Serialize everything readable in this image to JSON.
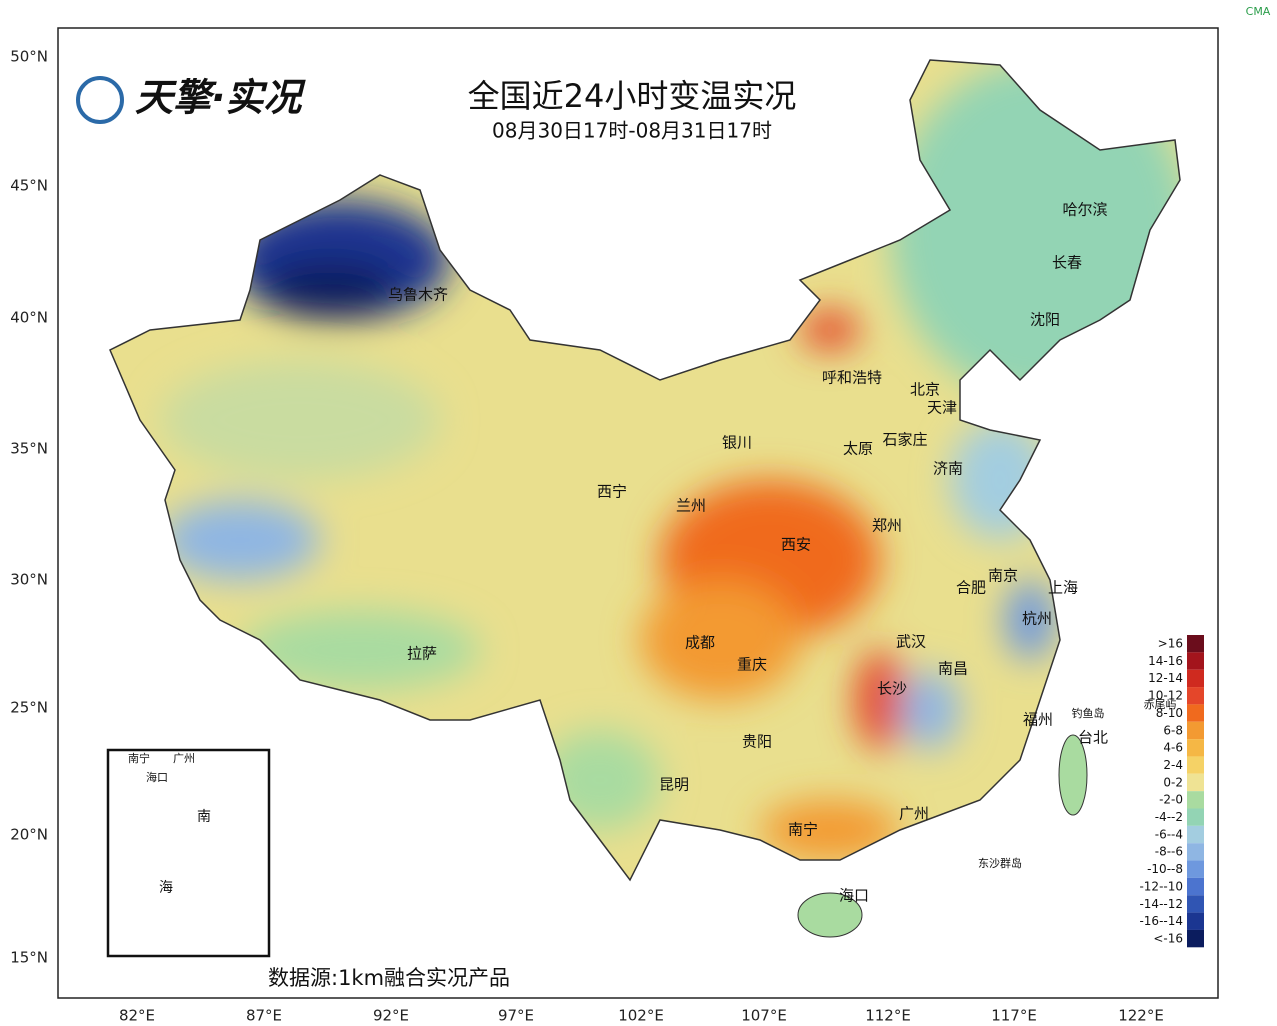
{
  "header": {
    "logo": "天擎·实况",
    "title": "全国近24小时变温实况",
    "subtitle": "08月30日17时-08月31日17时",
    "source": "数据源:1km融合实况产品",
    "watermark": "CMA"
  },
  "lat_labels": [
    "50°N",
    "45°N",
    "40°N",
    "35°N",
    "30°N",
    "25°N",
    "20°N",
    "15°N"
  ],
  "lon_labels": [
    "82°E",
    "87°E",
    "92°E",
    "97°E",
    "102°E",
    "107°E",
    "112°E",
    "117°E",
    "122°E"
  ],
  "cities": [
    {
      "label": "哈尔滨"
    },
    {
      "label": "长春"
    },
    {
      "label": "沈阳"
    },
    {
      "label": "乌鲁木齐"
    },
    {
      "label": "呼和浩特"
    },
    {
      "label": "北京"
    },
    {
      "label": "天津"
    },
    {
      "label": "银川"
    },
    {
      "label": "太原"
    },
    {
      "label": "石家庄"
    },
    {
      "label": "济南"
    },
    {
      "label": "西宁"
    },
    {
      "label": "兰州"
    },
    {
      "label": "郑州"
    },
    {
      "label": "西安"
    },
    {
      "label": "合肥"
    },
    {
      "label": "南京"
    },
    {
      "label": "上海"
    },
    {
      "label": "杭州"
    },
    {
      "label": "成都"
    },
    {
      "label": "拉萨"
    },
    {
      "label": "武汉"
    },
    {
      "label": "重庆"
    },
    {
      "label": "南昌"
    },
    {
      "label": "长沙"
    },
    {
      "label": "福州"
    },
    {
      "label": "钓鱼岛"
    },
    {
      "label": "赤尾屿"
    },
    {
      "label": "台北"
    },
    {
      "label": "贵阳"
    },
    {
      "label": "昆明"
    },
    {
      "label": "广州"
    },
    {
      "label": "南宁"
    },
    {
      "label": "东沙群岛"
    },
    {
      "label": "海口"
    }
  ],
  "legend": {
    "items": [
      {
        "label": ">16",
        "color": "#6b0d1c"
      },
      {
        "label": "14-16",
        "color": "#a3141c"
      },
      {
        "label": "12-14",
        "color": "#cf2a1f"
      },
      {
        "label": "10-12",
        "color": "#e4462a"
      },
      {
        "label": "8-10",
        "color": "#f06a1e"
      },
      {
        "label": "6-8",
        "color": "#f39a32"
      },
      {
        "label": "4-6",
        "color": "#f5b745"
      },
      {
        "label": "2-4",
        "color": "#f5d266"
      },
      {
        "label": "0-2",
        "color": "#efe394"
      },
      {
        "label": "-2-0",
        "color": "#a9dba0"
      },
      {
        "label": "-4--2",
        "color": "#93d4b4"
      },
      {
        "label": "-6--4",
        "color": "#a3cde0"
      },
      {
        "label": "-8--6",
        "color": "#8fb6e3"
      },
      {
        "label": "-10--8",
        "color": "#6e98de"
      },
      {
        "label": "-12--10",
        "color": "#4c74cf"
      },
      {
        "label": "-14--12",
        "color": "#3055b3"
      },
      {
        "label": "-16--14",
        "color": "#1b3691"
      },
      {
        "label": "<-16",
        "color": "#0b1c5e"
      }
    ]
  },
  "inset": {
    "labels": [
      "南宁",
      "广州",
      "海口",
      "南",
      "海"
    ]
  }
}
